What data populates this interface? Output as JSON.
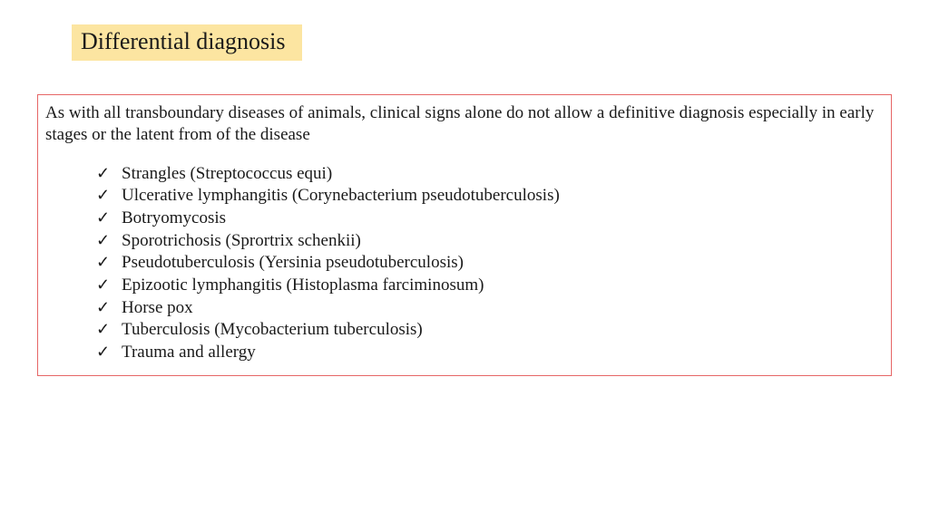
{
  "title": "Differential diagnosis",
  "intro": "As with all transboundary diseases of animals, clinical signs alone do not allow a definitive diagnosis especially in early stages or the latent from of the disease",
  "items": [
    "Strangles (Streptococcus equi)",
    "Ulcerative lymphangitis (Corynebacterium pseudotuberculosis)",
    "Botryomycosis",
    "Sporotrichosis (Sprortrix schenkii)",
    "Pseudotuberculosis (Yersinia pseudotuberculosis)",
    "Epizootic lymphangitis (Histoplasma farciminosum)",
    "Horse pox",
    "Tuberculosis (Mycobacterium tuberculosis)",
    "Trauma and allergy"
  ],
  "colors": {
    "title_bg": "#fce5a1",
    "border": "#e66666",
    "text": "#1a1a1a",
    "background": "#ffffff"
  },
  "checkmark": "✓"
}
